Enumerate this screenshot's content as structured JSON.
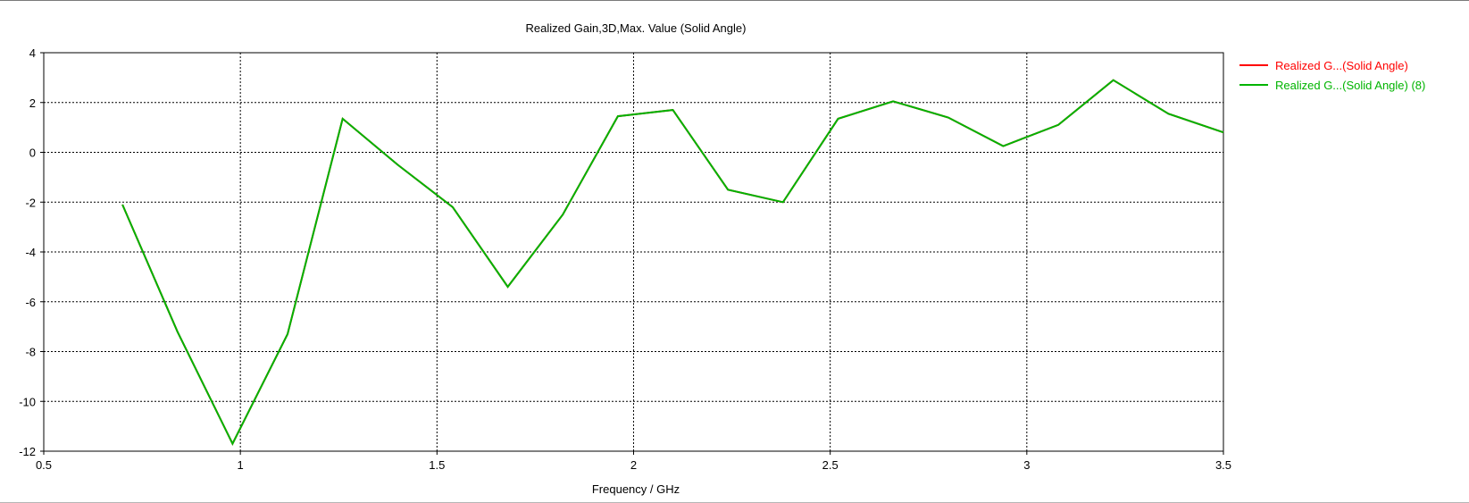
{
  "chart_data": {
    "type": "line",
    "title": "Realized Gain,3D,Max. Value (Solid Angle)",
    "xlabel": "Frequency / GHz",
    "ylabel": "",
    "xlim": [
      0.5,
      3.5
    ],
    "ylim": [
      -12,
      4
    ],
    "xticks": [
      "0.5",
      "1",
      "1.5",
      "2",
      "2.5",
      "3",
      "3.5"
    ],
    "yticks": [
      "4",
      "2",
      "0",
      "-2",
      "-4",
      "-6",
      "-8",
      "-10",
      "-12"
    ],
    "grid": true,
    "legend_position": "right",
    "x": [
      0.7,
      0.84,
      0.98,
      1.12,
      1.26,
      1.4,
      1.54,
      1.68,
      1.82,
      1.96,
      2.1,
      2.24,
      2.38,
      2.52,
      2.66,
      2.8,
      2.94,
      3.08,
      3.22,
      3.36,
      3.5
    ],
    "series": [
      {
        "name": "Realized G...(Solid Angle)",
        "color": "#ff0000",
        "values": [
          -2.1,
          -7.2,
          -11.7,
          -7.3,
          1.35,
          -0.5,
          -2.2,
          -5.4,
          -2.5,
          1.45,
          1.7,
          -1.5,
          -2.0,
          1.35,
          2.05,
          1.4,
          0.25,
          1.1,
          2.9,
          1.55,
          0.8
        ]
      },
      {
        "name": "Realized G...(Solid Angle) (8)",
        "color": "#00b400",
        "values": [
          -2.1,
          -7.2,
          -11.7,
          -7.3,
          1.35,
          -0.5,
          -2.2,
          -5.4,
          -2.5,
          1.45,
          1.7,
          -1.5,
          -2.0,
          1.35,
          2.05,
          1.4,
          0.25,
          1.1,
          2.9,
          1.55,
          0.8
        ]
      }
    ]
  }
}
